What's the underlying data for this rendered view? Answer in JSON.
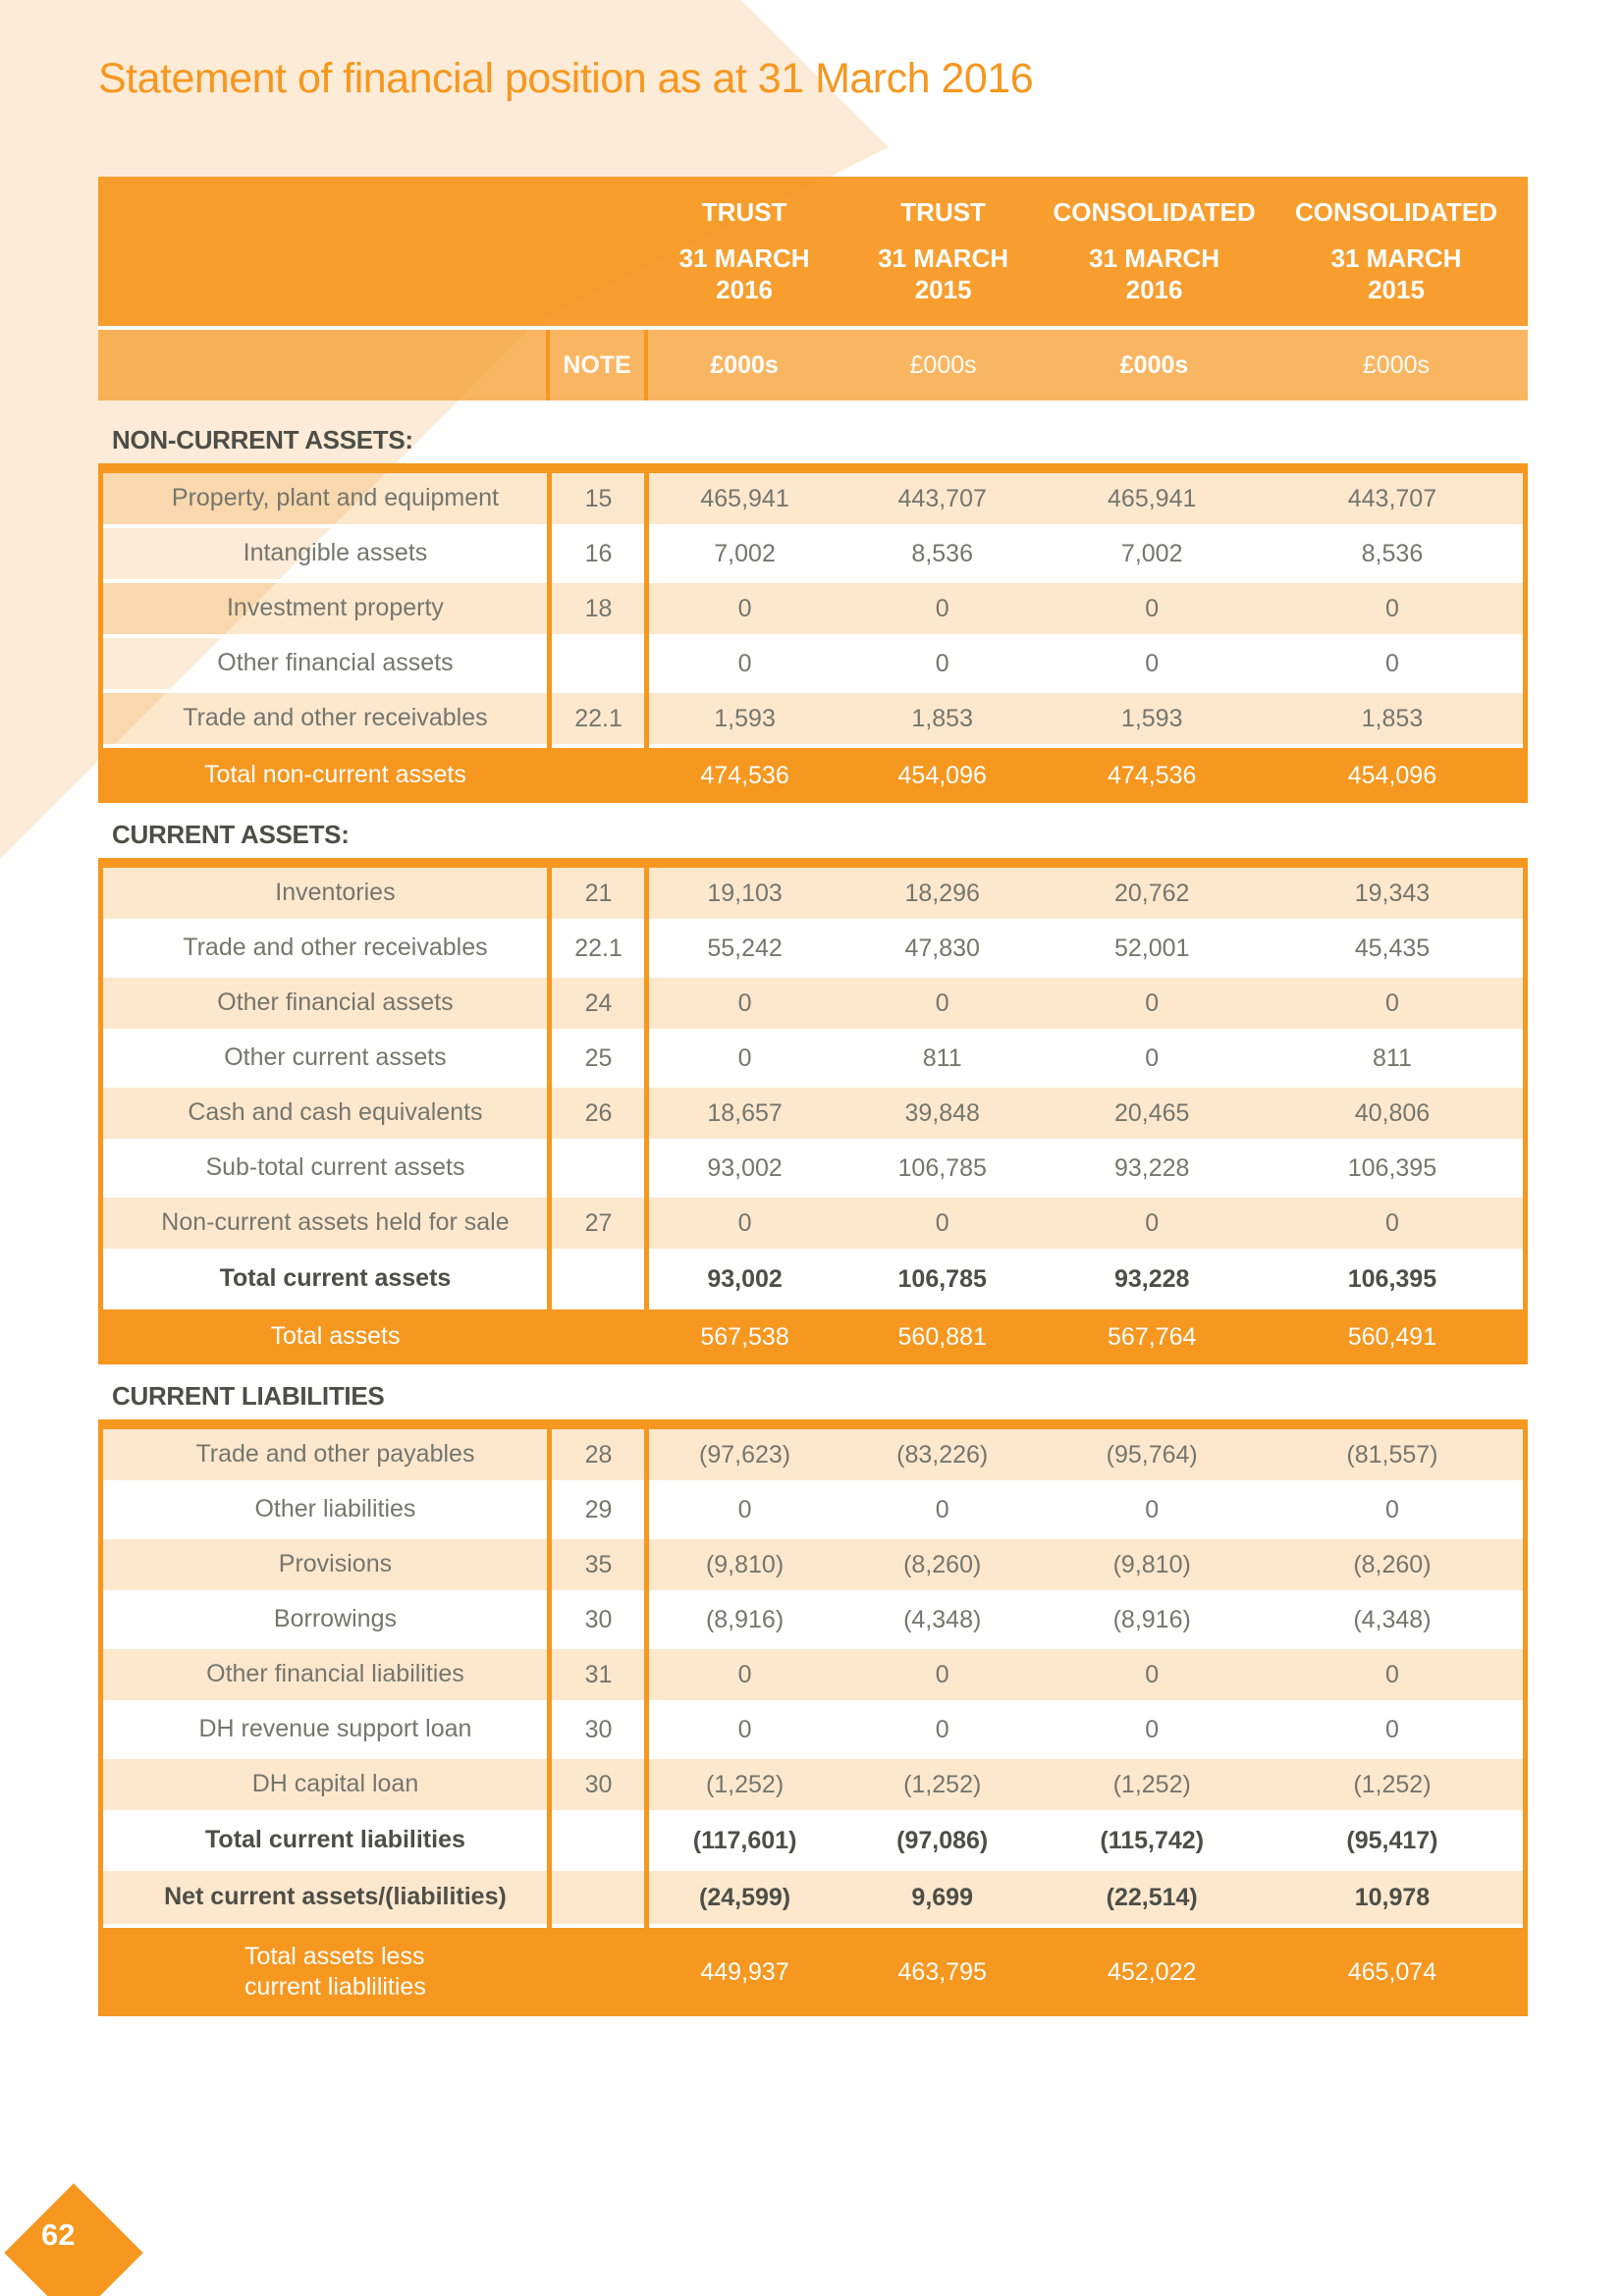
{
  "page": {
    "title": "Statement of financial position as at 31 March 2016",
    "page_number": "62"
  },
  "colors": {
    "orange": "#F6971F",
    "header_row": "rgba(246,151,31,0.93)",
    "subheader_row": "rgba(246,151,31,0.70)",
    "peach_row": "rgba(246,151,31,0.22)",
    "diagonal": "#FCEBD6",
    "text_gray": "#75766C",
    "text_dark": "#4D4E47"
  },
  "table": {
    "note_header": "NOTE",
    "columns": [
      {
        "group": "TRUST",
        "date": "31 MARCH",
        "year": "2016",
        "unit": "£000s",
        "emphasis": true
      },
      {
        "group": "TRUST",
        "date": "31 MARCH",
        "year": "2015",
        "unit": "£000s",
        "emphasis": false
      },
      {
        "group": "CONSOLIDATED",
        "date": "31 MARCH",
        "year": "2016",
        "unit": "£000s",
        "emphasis": true
      },
      {
        "group": "CONSOLIDATED",
        "date": "31 MARCH",
        "year": "2015",
        "unit": "£000s",
        "emphasis": false
      }
    ],
    "sections": [
      {
        "title": "NON-CURRENT ASSETS:",
        "rows": [
          {
            "label": "Property, plant and equipment",
            "note": "15",
            "values": [
              "465,941",
              "443,707",
              "465,941",
              "443,707"
            ],
            "style": "peach"
          },
          {
            "label": "Intangible assets",
            "note": "16",
            "values": [
              "7,002",
              "8,536",
              "7,002",
              "8,536"
            ],
            "style": "white"
          },
          {
            "label": "Investment property",
            "note": "18",
            "values": [
              "0",
              "0",
              "0",
              "0"
            ],
            "style": "peach"
          },
          {
            "label": "Other financial assets",
            "note": "",
            "values": [
              "0",
              "0",
              "0",
              "0"
            ],
            "style": "white"
          },
          {
            "label": "Trade and other receivables",
            "note": "22.1",
            "values": [
              "1,593",
              "1,853",
              "1,593",
              "1,853"
            ],
            "style": "peach"
          },
          {
            "label": "Total non-current assets",
            "note": "",
            "values": [
              "474,536",
              "454,096",
              "474,536",
              "454,096"
            ],
            "style": "total"
          }
        ]
      },
      {
        "title": "CURRENT ASSETS:",
        "rows": [
          {
            "label": "Inventories",
            "note": "21",
            "values": [
              "19,103",
              "18,296",
              "20,762",
              "19,343"
            ],
            "style": "peach"
          },
          {
            "label": "Trade and other receivables",
            "note": "22.1",
            "values": [
              "55,242",
              "47,830",
              "52,001",
              "45,435"
            ],
            "style": "white"
          },
          {
            "label": "Other financial assets",
            "note": "24",
            "values": [
              "0",
              "0",
              "0",
              "0"
            ],
            "style": "peach"
          },
          {
            "label": "Other current assets",
            "note": "25",
            "values": [
              "0",
              "811",
              "0",
              "811"
            ],
            "style": "white"
          },
          {
            "label": "Cash and cash equivalents",
            "note": "26",
            "values": [
              "18,657",
              "39,848",
              "20,465",
              "40,806"
            ],
            "style": "peach"
          },
          {
            "label": "Sub-total current assets",
            "note": "",
            "values": [
              "93,002",
              "106,785",
              "93,228",
              "106,395"
            ],
            "style": "white"
          },
          {
            "label": "Non-current assets held for sale",
            "note": "27",
            "values": [
              "0",
              "0",
              "0",
              "0"
            ],
            "style": "peach"
          },
          {
            "label": "Total current assets",
            "note": "",
            "values": [
              "93,002",
              "106,785",
              "93,228",
              "106,395"
            ],
            "style": "white-bold"
          },
          {
            "label": "Total assets",
            "note": "",
            "values": [
              "567,538",
              "560,881",
              "567,764",
              "560,491"
            ],
            "style": "total"
          }
        ]
      },
      {
        "title": "CURRENT LIABILITIES",
        "rows": [
          {
            "label": "Trade and other payables",
            "note": "28",
            "values": [
              "(97,623)",
              "(83,226)",
              "(95,764)",
              "(81,557)"
            ],
            "style": "peach"
          },
          {
            "label": "Other liabilities",
            "note": "29",
            "values": [
              "0",
              "0",
              "0",
              "0"
            ],
            "style": "white"
          },
          {
            "label": "Provisions",
            "note": "35",
            "values": [
              "(9,810)",
              "(8,260)",
              "(9,810)",
              "(8,260)"
            ],
            "style": "peach"
          },
          {
            "label": "Borrowings",
            "note": "30",
            "values": [
              "(8,916)",
              "(4,348)",
              "(8,916)",
              "(4,348)"
            ],
            "style": "white"
          },
          {
            "label": "Other financial liabilities",
            "note": "31",
            "values": [
              "0",
              "0",
              "0",
              "0"
            ],
            "style": "peach"
          },
          {
            "label": "DH revenue support loan",
            "note": "30",
            "values": [
              "0",
              "0",
              "0",
              "0"
            ],
            "style": "white"
          },
          {
            "label": "DH capital loan",
            "note": "30",
            "values": [
              "(1,252)",
              "(1,252)",
              "(1,252)",
              "(1,252)"
            ],
            "style": "peach"
          },
          {
            "label": "Total current liabilities",
            "note": "",
            "values": [
              "(117,601)",
              "(97,086)",
              "(115,742)",
              "(95,417)"
            ],
            "style": "white-bold"
          },
          {
            "label": "Net current assets/(liabilities)",
            "note": "",
            "values": [
              "(24,599)",
              "9,699",
              "(22,514)",
              "10,978"
            ],
            "style": "peach-bold"
          },
          {
            "label": "Total assets less\ncurrent liablilities",
            "note": "",
            "values": [
              "449,937",
              "463,795",
              "452,022",
              "465,074"
            ],
            "style": "total-tall"
          }
        ]
      }
    ]
  }
}
